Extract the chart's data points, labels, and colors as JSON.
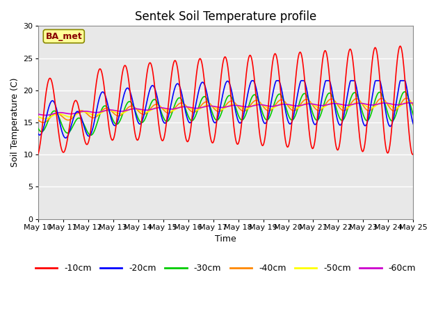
{
  "title": "Sentek Soil Temperature profile",
  "xlabel": "Time",
  "ylabel": "Soil Temperature (C)",
  "annotation": "BA_met",
  "ylim": [
    0,
    30
  ],
  "yticks": [
    0,
    5,
    10,
    15,
    20,
    25,
    30
  ],
  "x_start_day": 10,
  "x_end_day": 25,
  "x_tick_days": [
    10,
    11,
    12,
    13,
    14,
    15,
    16,
    17,
    18,
    19,
    20,
    21,
    22,
    23,
    24,
    25
  ],
  "colors": {
    "-10cm": "#ff0000",
    "-20cm": "#0000ff",
    "-30cm": "#00cc00",
    "-40cm": "#ff8800",
    "-50cm": "#ffff00",
    "-60cm": "#cc00cc"
  },
  "plot_bg_upper": "#e8e8e8",
  "plot_bg_lower": "#d0d0d0",
  "title_fontsize": 12,
  "legend_fontsize": 9,
  "axis_label_fontsize": 9,
  "tick_fontsize": 8
}
